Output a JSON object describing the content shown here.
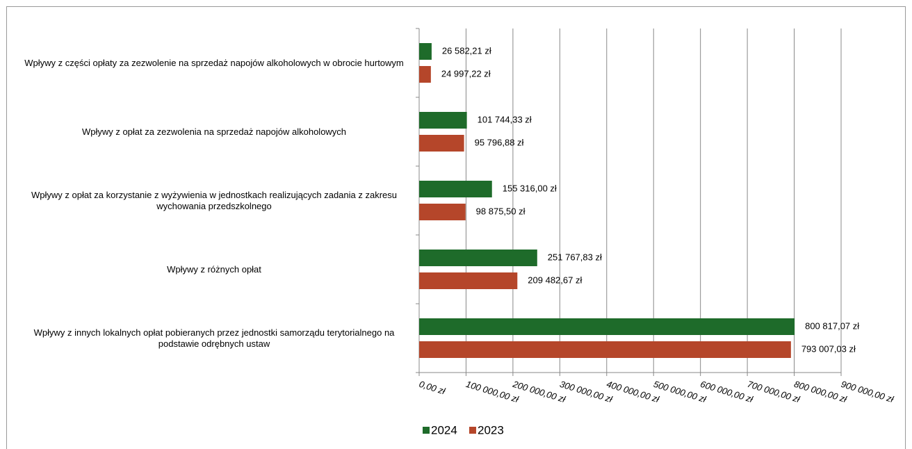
{
  "chart_data": {
    "type": "bar",
    "orientation": "horizontal",
    "categories": [
      "Wpływy z części opłaty za zezwolenie na sprzedaż napojów alkoholowych w obrocie hurtowym",
      "Wpływy z opłat za zezwolenia na sprzedaż napojów alkoholowych",
      "Wpływy z opłat za korzystanie z wyżywienia w jednostkach realizujących zadania z zakresu wychowania przedszkolnego",
      "Wpływy z różnych opłat",
      "Wpływy z innych lokalnych opłat pobieranych przez jednostki samorządu terytorialnego na podstawie odrębnych ustaw"
    ],
    "series": [
      {
        "name": "2024",
        "color": "#1e6b2a",
        "values": [
          26582.21,
          101744.33,
          155316.0,
          251767.83,
          800817.07
        ],
        "value_labels": [
          "26 582,21 zł",
          "101 744,33 zł",
          "155 316,00 zł",
          "251 767,83 zł",
          "800 817,07 zł"
        ]
      },
      {
        "name": "2023",
        "color": "#b5462a",
        "values": [
          24997.22,
          95796.88,
          98875.5,
          209482.67,
          793007.03
        ],
        "value_labels": [
          "24 997,22 zł",
          "95 796,88 zł",
          "98 875,50 zł",
          "209 482,67 zł",
          "793 007,03 zł"
        ]
      }
    ],
    "xlim": [
      0,
      900000
    ],
    "xticks": [
      {
        "value": 0,
        "label": "0,00 zł"
      },
      {
        "value": 100000,
        "label": "100 000,00 zł"
      },
      {
        "value": 200000,
        "label": "200 000,00 zł"
      },
      {
        "value": 300000,
        "label": "300 000,00 zł"
      },
      {
        "value": 400000,
        "label": "400 000,00 zł"
      },
      {
        "value": 500000,
        "label": "500 000,00 zł"
      },
      {
        "value": 600000,
        "label": "600 000,00 zł"
      },
      {
        "value": 700000,
        "label": "700 000,00 zł"
      },
      {
        "value": 800000,
        "label": "800 000,00 zł"
      },
      {
        "value": 900000,
        "label": "900 000,00 zł"
      }
    ],
    "grid": true,
    "legend": "bottom"
  }
}
